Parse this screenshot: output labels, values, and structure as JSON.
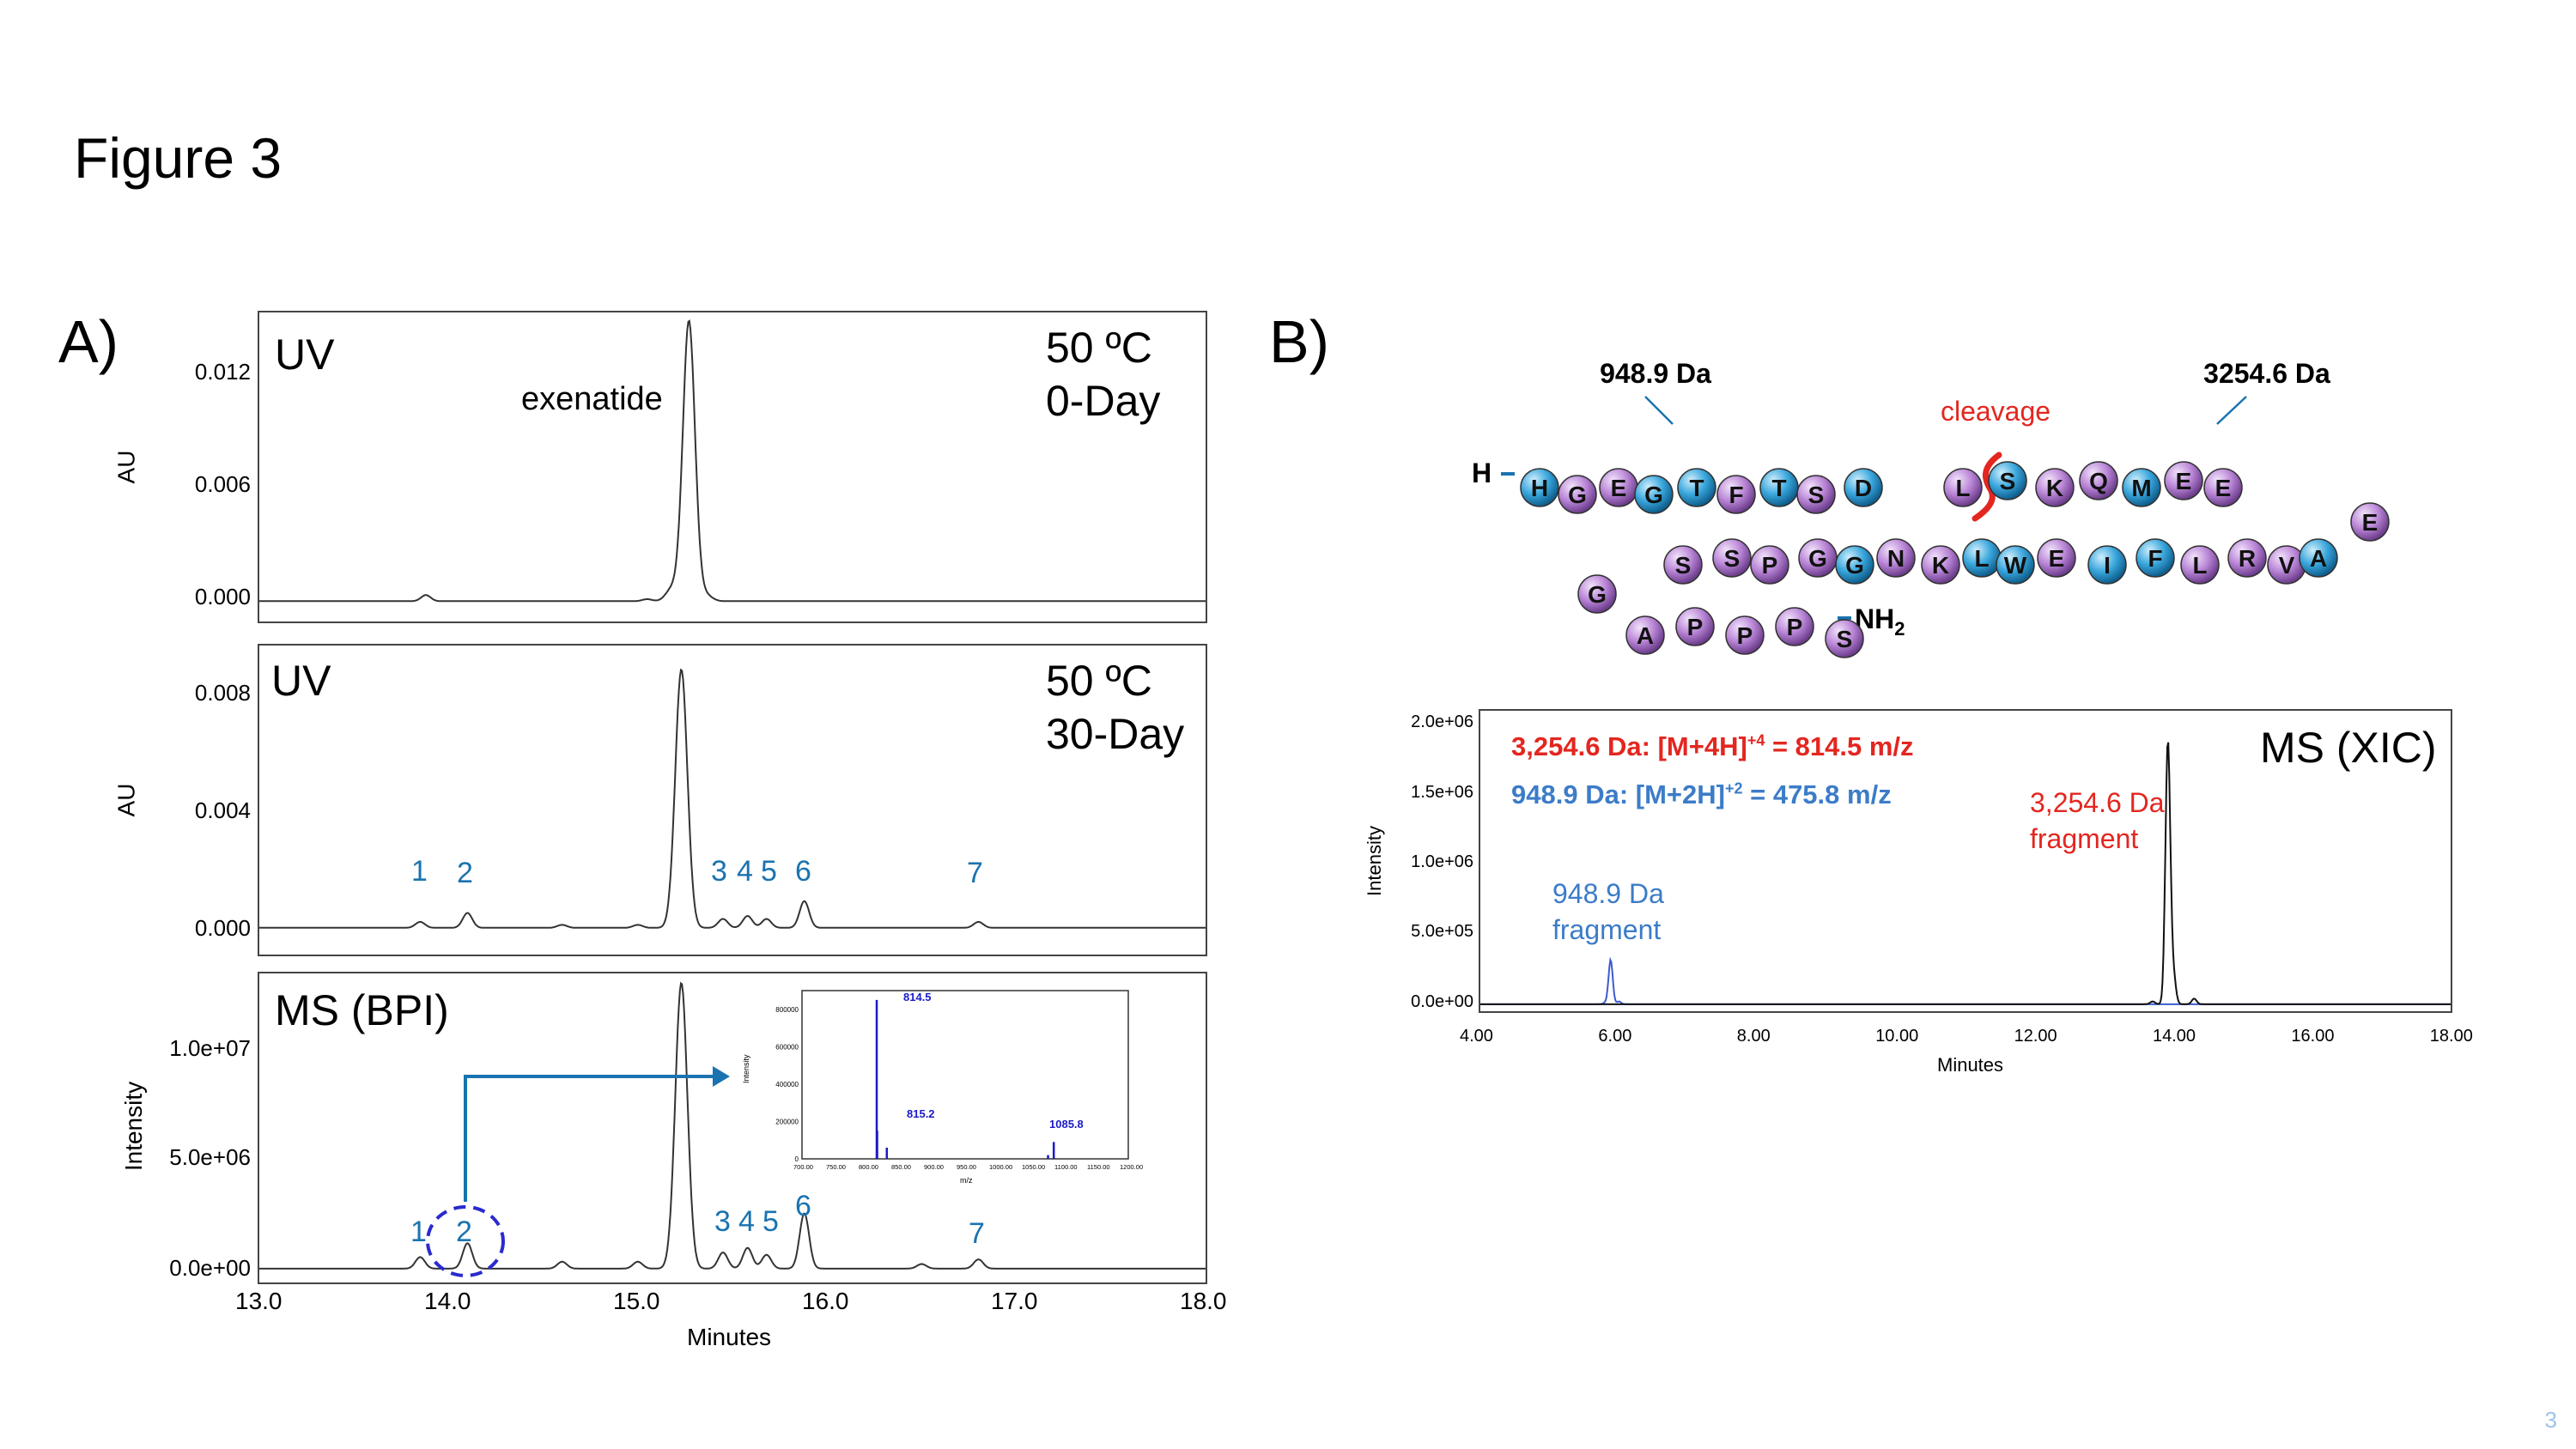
{
  "figure_title": "Figure 3",
  "page_number": "3",
  "panel_a": {
    "label": "A)",
    "uv_day0": {
      "detector": "UV",
      "condition": [
        "50 ºC",
        "0-Day"
      ],
      "peak_label": "exenatide",
      "ylabel": "AU",
      "yticks": [
        "0.012",
        "0.006",
        "0.000"
      ]
    },
    "uv_day30": {
      "detector": "UV",
      "condition": [
        "50 ºC",
        "30-Day"
      ],
      "ylabel": "AU",
      "yticks": [
        "0.008",
        "0.004",
        "0.000"
      ],
      "peaks": [
        "1",
        "2",
        "3",
        "4",
        "5",
        "6",
        "7"
      ]
    },
    "ms_bpi": {
      "detector": "MS (BPI)",
      "ylabel": "Intensity",
      "yticks": [
        "1.0e+07",
        "5.0e+06",
        "0.0e+00"
      ],
      "peaks": [
        "1",
        "2",
        "3",
        "4",
        "5",
        "6",
        "7"
      ]
    },
    "xlabel": "Minutes",
    "xticks": [
      "13.0",
      "14.0",
      "15.0",
      "16.0",
      "17.0",
      "18.0"
    ],
    "inset": {
      "ylabel": "Intensity",
      "xlabel": "m/z",
      "yticks": [
        "800000",
        "600000",
        "400000",
        "200000",
        "0"
      ],
      "xticks": [
        "700.00",
        "750.00",
        "800.00",
        "850.00",
        "900.00",
        "950.00",
        "1000.00",
        "1050.00",
        "1100.00",
        "1150.00",
        "1200.00"
      ],
      "peak_labels": [
        "814.5",
        "815.2",
        "1085.8"
      ]
    }
  },
  "panel_b": {
    "label": "B)",
    "fragment_masses": [
      "948.9 Da",
      "3254.6 Da"
    ],
    "cleavage_label": "cleavage",
    "n_term": "H",
    "c_term": "NH",
    "c_term_sub": "2",
    "sequence": {
      "row1": [
        "H",
        "G",
        "E",
        "G",
        "T",
        "F",
        "T",
        "S",
        "D",
        "L",
        "S",
        "K",
        "Q",
        "M",
        "E",
        "E"
      ],
      "row2": [
        "S",
        "S",
        "P",
        "G",
        "G",
        "N",
        "K",
        "L",
        "W",
        "E",
        "I",
        "F",
        "L",
        "R",
        "V",
        "A",
        "E"
      ],
      "row3": [
        "G"
      ],
      "row4": [
        "A",
        "P",
        "P",
        "P",
        "S"
      ]
    },
    "xic": {
      "title": "MS (XIC)",
      "legend_red": "3,254.6 Da: [M+4H]",
      "legend_red_sup": "+4",
      "legend_red_tail": " = 814.5 m/z",
      "legend_blue": "948.9 Da: [M+2H]",
      "legend_blue_sup": "+2",
      "legend_blue_tail": " = 475.8 m/z",
      "red_annotation": [
        "3,254.6 Da",
        "fragment"
      ],
      "blue_annotation": [
        "948.9 Da",
        "fragment"
      ],
      "ylabel": "Intensity",
      "xlabel": "Minutes",
      "yticks": [
        "2.0e+06",
        "1.5e+06",
        "1.0e+06",
        "5.0e+05",
        "0.0e+00"
      ],
      "xticks": [
        "4.00",
        "6.00",
        "8.00",
        "10.00",
        "12.00",
        "14.00",
        "16.00",
        "18.00"
      ]
    }
  },
  "colors": {
    "blue_label": "#1a73b0",
    "red": "#e3261f",
    "xic_blue": "#3c7cc8",
    "bead_blue": "#39a6dc",
    "bead_purple": "#b985d6"
  },
  "chart_data": [
    {
      "type": "line",
      "title": "UV 50 ºC 0-Day",
      "xlabel": "Minutes",
      "ylabel": "AU",
      "xlim": [
        13.0,
        18.0
      ],
      "ylim": [
        -0.0007,
        0.0145
      ],
      "series": [
        {
          "name": "UV",
          "x": [
            13.0,
            13.88,
            14.5,
            15.05,
            15.18,
            15.27,
            15.36,
            16.0,
            17.0,
            18.0
          ],
          "y": [
            0.0003,
            0.0006,
            0.0003,
            0.0004,
            0.0009,
            0.0141,
            0.0006,
            0.0003,
            0.0003,
            0.0003
          ]
        }
      ],
      "annotations": [
        "exenatide"
      ]
    },
    {
      "type": "line",
      "title": "UV 50 ºC 30-Day",
      "xlabel": "Minutes",
      "ylabel": "AU",
      "xlim": [
        13.0,
        18.0
      ],
      "ylim": [
        -0.0004,
        0.01
      ],
      "series": [
        {
          "name": "UV",
          "x": [
            13.0,
            13.85,
            14.1,
            14.6,
            15.0,
            15.23,
            15.45,
            15.58,
            15.68,
            15.88,
            16.5,
            16.8,
            18.0
          ],
          "y": [
            0.0005,
            0.0007,
            0.001,
            0.0006,
            0.0006,
            0.0092,
            0.0008,
            0.0009,
            0.0008,
            0.0014,
            0.0005,
            0.0007,
            0.0005
          ]
        }
      ],
      "annotations": [
        "1",
        "2",
        "3",
        "4",
        "5",
        "6",
        "7"
      ]
    },
    {
      "type": "line",
      "title": "MS (BPI)",
      "xlabel": "Minutes",
      "ylabel": "Intensity",
      "xlim": [
        13.0,
        18.0
      ],
      "ylim": [
        -400000,
        13000000
      ],
      "series": [
        {
          "name": "BPI",
          "x": [
            13.0,
            13.85,
            14.1,
            14.6,
            15.0,
            15.23,
            15.45,
            15.58,
            15.68,
            15.88,
            16.5,
            16.8,
            18.0
          ],
          "y": [
            200000,
            700000,
            1300000,
            500000,
            500000,
            12600000,
            900000,
            1100000,
            800000,
            2600000,
            400000,
            600000,
            200000
          ]
        }
      ],
      "annotations": [
        "1",
        "2",
        "3",
        "4",
        "5",
        "6",
        "7"
      ]
    },
    {
      "type": "bar",
      "title": "Inset mass spectrum (peak 2)",
      "xlabel": "m/z",
      "ylabel": "Intensity",
      "xlim": [
        700,
        1200
      ],
      "ylim": [
        0,
        900000
      ],
      "x": [
        814.5,
        815.2,
        830,
        1077,
        1085.8
      ],
      "values": [
        850000,
        150000,
        60000,
        20000,
        90000
      ]
    },
    {
      "type": "line",
      "title": "MS (XIC)",
      "xlabel": "Minutes",
      "ylabel": "Intensity",
      "xlim": [
        4.0,
        18.0
      ],
      "ylim": [
        -50000,
        2100000
      ],
      "series": [
        {
          "name": "948.9 Da: [M+2H]+2 = 475.8 m/z",
          "x": [
            4.0,
            5.8,
            5.88,
            6.0,
            18.0
          ],
          "y": [
            0,
            10000,
            320000,
            20000,
            0
          ]
        },
        {
          "name": "3,254.6 Da: [M+4H]+4 = 814.5 m/z",
          "x": [
            4.0,
            13.7,
            13.92,
            14.0,
            14.3,
            18.0
          ],
          "y": [
            0,
            20000,
            1880000,
            200000,
            40000,
            0
          ]
        }
      ]
    }
  ]
}
